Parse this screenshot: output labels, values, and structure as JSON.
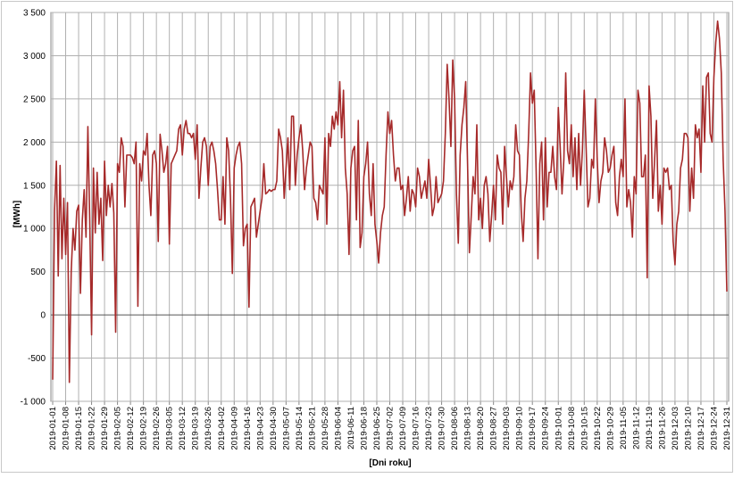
{
  "chart_data": {
    "type": "line",
    "y_label": "[MWh]",
    "x_label": "[Dni roku]",
    "categories": [
      "2019-01-01",
      null,
      null,
      null,
      null,
      null,
      null,
      "2019-01-08",
      null,
      null,
      null,
      null,
      null,
      null,
      "2019-01-15",
      null,
      null,
      null,
      null,
      null,
      null,
      "2019-01-22",
      null,
      null,
      null,
      null,
      null,
      null,
      "2019-01-29",
      null,
      null,
      null,
      null,
      null,
      null,
      "2019-02-05",
      null,
      null,
      null,
      null,
      null,
      null,
      "2019-02-12",
      null,
      null,
      null,
      null,
      null,
      null,
      "2019-02-19",
      null,
      null,
      null,
      null,
      null,
      null,
      "2019-02-26",
      null,
      null,
      null,
      null,
      null,
      null,
      "2019-03-05",
      null,
      null,
      null,
      null,
      null,
      null,
      "2019-03-12",
      null,
      null,
      null,
      null,
      null,
      null,
      "2019-03-19",
      null,
      null,
      null,
      null,
      null,
      null,
      "2019-03-26",
      null,
      null,
      null,
      null,
      null,
      null,
      "2019-04-02",
      null,
      null,
      null,
      null,
      null,
      null,
      "2019-04-09",
      null,
      null,
      null,
      null,
      null,
      null,
      "2019-04-16",
      null,
      null,
      null,
      null,
      null,
      null,
      "2019-04-23",
      null,
      null,
      null,
      null,
      null,
      null,
      "2019-04-30",
      null,
      null,
      null,
      null,
      null,
      null,
      "2019-05-07",
      null,
      null,
      null,
      null,
      null,
      null,
      "2019-05-14",
      null,
      null,
      null,
      null,
      null,
      null,
      "2019-05-21",
      null,
      null,
      null,
      null,
      null,
      null,
      "2019-05-28",
      null,
      null,
      null,
      null,
      null,
      null,
      "2019-06-04",
      null,
      null,
      null,
      null,
      null,
      null,
      "2019-06-11",
      null,
      null,
      null,
      null,
      null,
      null,
      "2019-06-18",
      null,
      null,
      null,
      null,
      null,
      null,
      "2019-06-25",
      null,
      null,
      null,
      null,
      null,
      null,
      "2019-07-02",
      null,
      null,
      null,
      null,
      null,
      null,
      "2019-07-09",
      null,
      null,
      null,
      null,
      null,
      null,
      "2019-07-16",
      null,
      null,
      null,
      null,
      null,
      null,
      "2019-07-23",
      null,
      null,
      null,
      null,
      null,
      null,
      "2019-07-30",
      null,
      null,
      null,
      null,
      null,
      null,
      "2019-08-06",
      null,
      null,
      null,
      null,
      null,
      null,
      "2019-08-13",
      null,
      null,
      null,
      null,
      null,
      null,
      "2019-08-20",
      null,
      null,
      null,
      null,
      null,
      null,
      "2019-08-27",
      null,
      null,
      null,
      null,
      null,
      null,
      "2019-09-03",
      null,
      null,
      null,
      null,
      null,
      null,
      "2019-09-10",
      null,
      null,
      null,
      null,
      null,
      null,
      "2019-09-17",
      null,
      null,
      null,
      null,
      null,
      null,
      "2019-09-24",
      null,
      null,
      null,
      null,
      null,
      null,
      "2019-10-01",
      null,
      null,
      null,
      null,
      null,
      null,
      "2019-10-08",
      null,
      null,
      null,
      null,
      null,
      null,
      "2019-10-15",
      null,
      null,
      null,
      null,
      null,
      null,
      "2019-10-22",
      null,
      null,
      null,
      null,
      null,
      null,
      "2019-10-29",
      null,
      null,
      null,
      null,
      null,
      null,
      "2019-11-05",
      null,
      null,
      null,
      null,
      null,
      null,
      "2019-11-12",
      null,
      null,
      null,
      null,
      null,
      null,
      "2019-11-19",
      null,
      null,
      null,
      null,
      null,
      null,
      "2019-11-26",
      null,
      null,
      null,
      null,
      null,
      null,
      "2019-12-03",
      null,
      null,
      null,
      null,
      null,
      null,
      "2019-12-10",
      null,
      null,
      null,
      null,
      null,
      null,
      "2019-12-17",
      null,
      null,
      null,
      null,
      null,
      null,
      "2019-12-24",
      null,
      null,
      null,
      null,
      null,
      null,
      "2019-12-31"
    ],
    "series": [
      {
        "color": "#a62a2a",
        "values": [
          -750,
          1200,
          1780,
          450,
          1730,
          650,
          1350,
          700,
          1300,
          -780,
          500,
          1000,
          750,
          1200,
          1270,
          250,
          1100,
          1450,
          900,
          2180,
          1100,
          -230,
          1700,
          950,
          1650,
          1050,
          1350,
          630,
          1780,
          1150,
          1500,
          1250,
          1520,
          1180,
          -200,
          1750,
          1650,
          2050,
          1950,
          1250,
          1850,
          1850,
          1850,
          1820,
          1750,
          2000,
          100,
          1750,
          1550,
          1900,
          1850,
          2100,
          1500,
          1150,
          1850,
          1900,
          1750,
          850,
          2090,
          1900,
          1650,
          1750,
          1950,
          820,
          1750,
          1800,
          1850,
          1900,
          2150,
          2200,
          1850,
          2150,
          2250,
          2100,
          2100,
          2050,
          2100,
          1800,
          2200,
          1350,
          1700,
          2000,
          2050,
          1950,
          1500,
          1950,
          2000,
          1900,
          1750,
          1450,
          1100,
          1100,
          1600,
          1050,
          2050,
          1900,
          1350,
          480,
          1700,
          1850,
          1950,
          2000,
          1750,
          800,
          1000,
          1050,
          90,
          1250,
          1300,
          1350,
          900,
          1050,
          1200,
          1350,
          1750,
          1400,
          1420,
          1450,
          1430,
          1450,
          1450,
          1550,
          2150,
          2050,
          1900,
          1350,
          1700,
          2050,
          1450,
          2300,
          2300,
          1500,
          1850,
          2050,
          2200,
          1900,
          1450,
          1700,
          1850,
          2000,
          1950,
          1350,
          1300,
          1100,
          1500,
          1450,
          1400,
          2050,
          1050,
          2100,
          1950,
          2300,
          2150,
          2350,
          2200,
          2700,
          2050,
          2600,
          1700,
          1400,
          700,
          1700,
          1900,
          1950,
          1100,
          2250,
          780,
          950,
          1600,
          1750,
          2000,
          1400,
          1150,
          1750,
          1050,
          850,
          600,
          950,
          1150,
          1250,
          1850,
          2350,
          2100,
          2250,
          1850,
          1550,
          1700,
          1700,
          1450,
          1500,
          1150,
          1350,
          1600,
          1200,
          1450,
          1400,
          1250,
          1700,
          1600,
          1350,
          1450,
          1550,
          1350,
          1800,
          1500,
          1150,
          1250,
          1600,
          1300,
          1350,
          1400,
          1550,
          2100,
          2900,
          2500,
          1950,
          2950,
          2500,
          1400,
          830,
          1850,
          2200,
          2400,
          2700,
          1750,
          720,
          1150,
          1600,
          1400,
          2200,
          1100,
          1350,
          1000,
          1500,
          1600,
          1400,
          850,
          1150,
          1500,
          1100,
          1850,
          1700,
          1650,
          1050,
          1950,
          1600,
          1250,
          1550,
          1450,
          1600,
          2200,
          1900,
          1850,
          1200,
          850,
          1350,
          1550,
          2100,
          2800,
          2450,
          2600,
          1700,
          650,
          1750,
          2000,
          1100,
          2050,
          1250,
          1650,
          1650,
          1950,
          1600,
          1450,
          2400,
          1950,
          1400,
          1800,
          2800,
          1900,
          1750,
          2200,
          1600,
          2050,
          1450,
          2100,
          1500,
          1900,
          2600,
          1950,
          1250,
          1350,
          1800,
          1700,
          2500,
          1800,
          1300,
          1550,
          1650,
          2050,
          1900,
          1650,
          1700,
          1850,
          1950,
          1300,
          1150,
          1600,
          1800,
          1600,
          2500,
          1250,
          1450,
          1300,
          900,
          1600,
          1400,
          2600,
          2450,
          1600,
          1600,
          1850,
          430,
          2650,
          2300,
          1350,
          1800,
          2250,
          1200,
          1500,
          1050,
          1700,
          1650,
          1700,
          1450,
          1500,
          850,
          580,
          1050,
          1200,
          1700,
          1800,
          2100,
          2100,
          2050,
          1200,
          1700,
          1350,
          2200,
          2050,
          2150,
          1650,
          2650,
          2000,
          2750,
          2800,
          2100,
          2000,
          2750,
          3150,
          3400,
          3200,
          2800,
          1800,
          1200,
          270
        ]
      }
    ],
    "ylim": [
      -1000,
      3500
    ],
    "yticks": [
      {
        "value": -1000,
        "label": "-1 000"
      },
      -500,
      0,
      500,
      {
        "value": 1000,
        "label": "1 000"
      },
      {
        "value": 1500,
        "label": "1 500"
      },
      {
        "value": 2000,
        "label": "2 000"
      },
      {
        "value": 2500,
        "label": "2 500"
      },
      {
        "value": 3000,
        "label": "3 000"
      },
      {
        "value": 3500,
        "label": "3 500"
      }
    ],
    "grid": true
  }
}
